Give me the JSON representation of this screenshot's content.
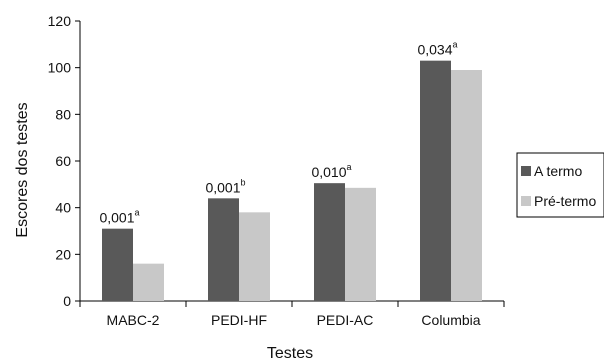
{
  "chart_data": {
    "type": "bar",
    "categories": [
      "MABC-2",
      "PEDI-HF",
      "PEDI-AC",
      "Columbia"
    ],
    "series": [
      {
        "name": "A termo",
        "values": [
          31,
          44,
          50.5,
          103
        ],
        "color": "#595959"
      },
      {
        "name": "Pré-termo",
        "values": [
          16,
          38,
          48.5,
          99
        ],
        "color": "#c8c8c8"
      }
    ],
    "annotations": [
      {
        "value": "0,001",
        "sup": "a"
      },
      {
        "value": "0,001",
        "sup": "b"
      },
      {
        "value": "0,010",
        "sup": "a"
      },
      {
        "value": "0,034",
        "sup": "a"
      }
    ],
    "xlabel": "Testes",
    "ylabel": "Escores dos testes",
    "ylim": [
      0,
      120
    ],
    "yticks": [
      0,
      20,
      40,
      60,
      80,
      100,
      120
    ],
    "grid": false,
    "legend_position": "right"
  }
}
